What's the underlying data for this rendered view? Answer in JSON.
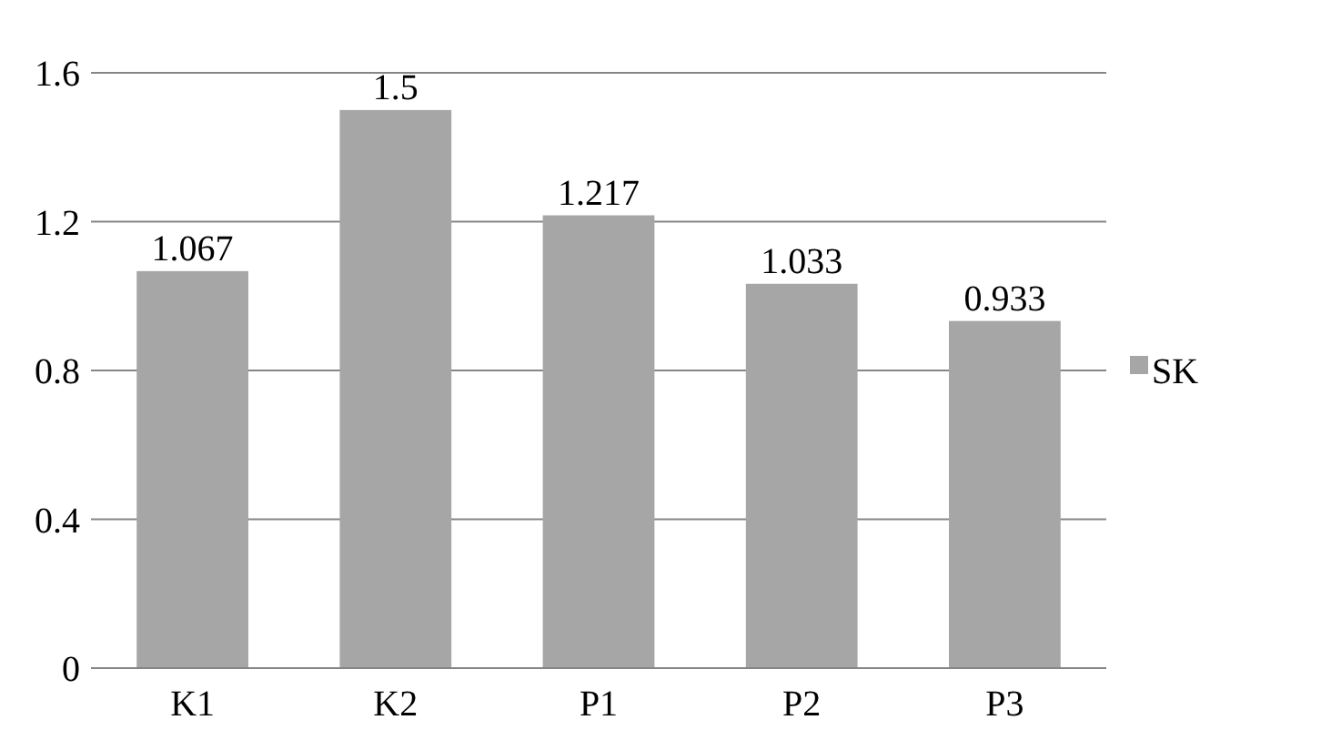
{
  "chart_data": {
    "type": "bar",
    "categories": [
      "K1",
      "K2",
      "P1",
      "P2",
      "P3"
    ],
    "series": [
      {
        "name": "SK",
        "color": "#a6a6a6",
        "values": [
          1.067,
          1.5,
          1.217,
          1.033,
          0.933
        ]
      }
    ],
    "ylim": [
      0,
      1.6
    ],
    "yticks": [
      0,
      0.4,
      0.8,
      1.2,
      1.6
    ],
    "grid": "y",
    "legend": "right",
    "data_labels": true
  }
}
